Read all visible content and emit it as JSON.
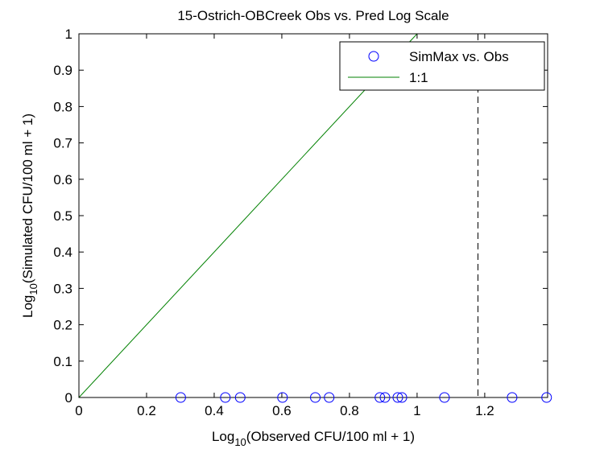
{
  "chart_data": {
    "type": "scatter",
    "title": "15-Ostrich-OBCreek Obs vs. Pred Log Scale",
    "xlabel": {
      "main": "Log",
      "sub": "10",
      "rest": "(Observed CFU/100 ml + 1)"
    },
    "ylabel": {
      "main": "Log",
      "sub": "10",
      "rest": "(Simulated CFU/100 ml + 1)"
    },
    "series": [
      {
        "name": "SimMax vs. Obs",
        "color": "#0000ff",
        "marker": "circle",
        "x": [
          0.301,
          0.433,
          0.477,
          0.602,
          0.699,
          0.74,
          0.89,
          0.905,
          0.943,
          0.955,
          1.081,
          1.281,
          1.383
        ],
        "values": [
          0,
          0,
          0,
          0,
          0,
          0,
          0,
          0,
          0,
          0,
          0,
          0,
          0
        ]
      },
      {
        "name": "1:1",
        "color": "#008000",
        "marker": "line",
        "x": [
          0,
          1
        ],
        "values": [
          0,
          1
        ]
      }
    ],
    "vline": {
      "x": 1.18,
      "color": "#000000",
      "style": "dashed"
    },
    "xlim": [
      0,
      1.386
    ],
    "ylim": [
      0,
      1
    ],
    "xticks": [
      0,
      0.2,
      0.4,
      0.6,
      0.8,
      1,
      1.2
    ],
    "yticks": [
      0,
      0.1,
      0.2,
      0.3,
      0.4,
      0.5,
      0.6,
      0.7,
      0.8,
      0.9,
      1
    ],
    "legend": "northeast"
  }
}
